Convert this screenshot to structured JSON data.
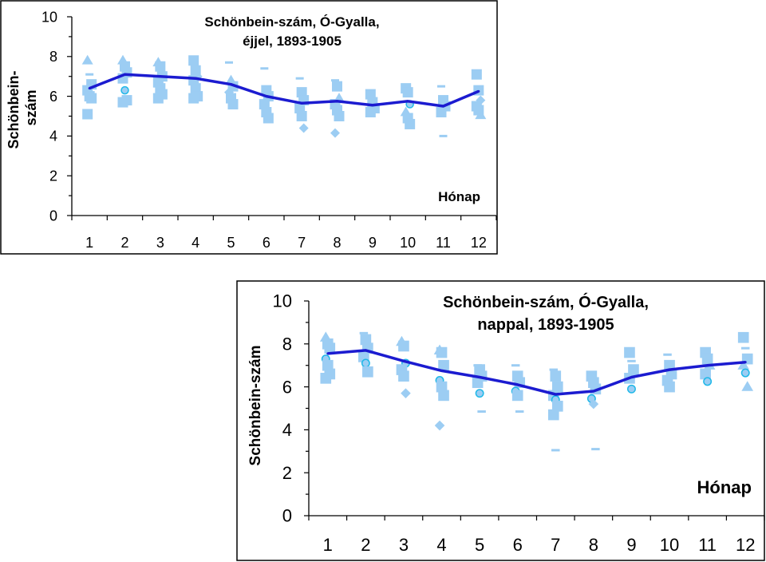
{
  "chart_data": [
    {
      "type": "line",
      "title_line1": "Schönbein-szám,  Ó-Gyalla,",
      "title_line2": "éjjel, 1893-1905",
      "ylabel_line1": "Schönbein-",
      "ylabel_line2": "szám",
      "xlabel": "Hónap",
      "ylim": [
        0,
        10
      ],
      "yticks": [
        "0",
        "2",
        "4",
        "6",
        "8",
        "10"
      ],
      "categories": [
        "1",
        "2",
        "3",
        "4",
        "5",
        "6",
        "7",
        "8",
        "9",
        "10",
        "11",
        "12"
      ],
      "series": [
        {
          "name": "mean",
          "values": [
            6.4,
            7.1,
            7.0,
            6.9,
            6.6,
            6.0,
            5.65,
            5.75,
            5.55,
            5.75,
            5.5,
            6.25
          ]
        }
      ],
      "scatter": [
        [
          [
            7.8,
            "tri"
          ],
          [
            7.1,
            "dash"
          ],
          [
            6.6,
            "sq"
          ],
          [
            6.3,
            "sq"
          ],
          [
            6.0,
            "sq"
          ],
          [
            5.9,
            "sq"
          ],
          [
            5.1,
            "sq"
          ]
        ],
        [
          [
            7.8,
            "tri"
          ],
          [
            7.5,
            "sq"
          ],
          [
            7.2,
            "sq"
          ],
          [
            6.9,
            "sq"
          ],
          [
            6.3,
            "circ"
          ],
          [
            5.8,
            "sq"
          ],
          [
            5.7,
            "sq"
          ]
        ],
        [
          [
            7.7,
            "tri"
          ],
          [
            7.5,
            "sq"
          ],
          [
            7.0,
            "sq"
          ],
          [
            6.7,
            "sq"
          ],
          [
            6.4,
            "sq"
          ],
          [
            6.1,
            "sq"
          ],
          [
            5.9,
            "sq"
          ]
        ],
        [
          [
            7.8,
            "sq"
          ],
          [
            7.3,
            "sq"
          ],
          [
            7.0,
            "diam"
          ],
          [
            6.8,
            "sq"
          ],
          [
            6.4,
            "sq"
          ],
          [
            6.0,
            "sq"
          ],
          [
            5.9,
            "sq"
          ]
        ],
        [
          [
            7.7,
            "dash"
          ],
          [
            6.8,
            "tri"
          ],
          [
            6.5,
            "sq"
          ],
          [
            6.2,
            "diam"
          ],
          [
            5.9,
            "sq"
          ],
          [
            5.6,
            "sq"
          ]
        ],
        [
          [
            7.4,
            "dash"
          ],
          [
            6.3,
            "sq"
          ],
          [
            6.0,
            "sq"
          ],
          [
            5.6,
            "sq"
          ],
          [
            5.2,
            "sq"
          ],
          [
            4.9,
            "sq"
          ]
        ],
        [
          [
            6.9,
            "dash"
          ],
          [
            6.2,
            "sq"
          ],
          [
            5.8,
            "sq"
          ],
          [
            5.4,
            "sq"
          ],
          [
            5.0,
            "sq"
          ],
          [
            4.4,
            "diam"
          ]
        ],
        [
          [
            6.8,
            "dash"
          ],
          [
            6.5,
            "sq"
          ],
          [
            5.9,
            "tri"
          ],
          [
            5.6,
            "sq"
          ],
          [
            5.3,
            "sq"
          ],
          [
            5.0,
            "sq"
          ],
          [
            4.15,
            "diam"
          ]
        ],
        [
          [
            6.1,
            "sq"
          ],
          [
            5.7,
            "sq"
          ],
          [
            5.4,
            "sq"
          ],
          [
            5.2,
            "sq"
          ]
        ],
        [
          [
            6.4,
            "sq"
          ],
          [
            6.2,
            "sq"
          ],
          [
            5.6,
            "circ"
          ],
          [
            5.2,
            "tri"
          ],
          [
            4.9,
            "sq"
          ],
          [
            4.6,
            "sq"
          ]
        ],
        [
          [
            6.5,
            "dash"
          ],
          [
            5.8,
            "sq"
          ],
          [
            5.5,
            "sq"
          ],
          [
            5.2,
            "sq"
          ],
          [
            4.0,
            "dash"
          ]
        ],
        [
          [
            7.1,
            "sq"
          ],
          [
            6.3,
            "sq"
          ],
          [
            5.8,
            "diam"
          ],
          [
            5.5,
            "sq"
          ],
          [
            5.3,
            "sq"
          ],
          [
            5.05,
            "tri"
          ]
        ]
      ]
    },
    {
      "type": "line",
      "title_line1": "Schönbein-szám, Ó-Gyalla,",
      "title_line2": "nappal, 1893-1905",
      "ylabel": "Schönbein-szám",
      "xlabel": "Hónap",
      "ylim": [
        0,
        10
      ],
      "yticks": [
        "0",
        "2",
        "4",
        "6",
        "8",
        "10"
      ],
      "categories": [
        "1",
        "2",
        "3",
        "4",
        "5",
        "6",
        "7",
        "8",
        "9",
        "10",
        "11",
        "12"
      ],
      "series": [
        {
          "name": "mean",
          "values": [
            7.55,
            7.7,
            7.2,
            6.75,
            6.45,
            6.1,
            5.65,
            5.8,
            6.45,
            6.8,
            7.0,
            7.15
          ]
        }
      ],
      "scatter": [
        [
          [
            8.3,
            "tri"
          ],
          [
            8.0,
            "sq"
          ],
          [
            7.8,
            "sq"
          ],
          [
            7.3,
            "circ"
          ],
          [
            7.0,
            "sq"
          ],
          [
            6.6,
            "sq"
          ],
          [
            6.4,
            "sq"
          ]
        ],
        [
          [
            8.5,
            "dash"
          ],
          [
            8.2,
            "sq"
          ],
          [
            7.8,
            "sq"
          ],
          [
            7.4,
            "sq"
          ],
          [
            7.1,
            "circ"
          ],
          [
            6.7,
            "sq"
          ]
        ],
        [
          [
            8.1,
            "tri"
          ],
          [
            7.9,
            "sq"
          ],
          [
            7.1,
            "circ"
          ],
          [
            6.8,
            "sq"
          ],
          [
            6.5,
            "sq"
          ],
          [
            5.7,
            "diam"
          ]
        ],
        [
          [
            7.7,
            "tri"
          ],
          [
            7.6,
            "sq"
          ],
          [
            7.0,
            "sq"
          ],
          [
            6.3,
            "circ"
          ],
          [
            6.0,
            "sq"
          ],
          [
            5.6,
            "sq"
          ],
          [
            4.2,
            "diam"
          ]
        ],
        [
          [
            7.0,
            "dash"
          ],
          [
            6.8,
            "sq"
          ],
          [
            6.5,
            "sq"
          ],
          [
            6.2,
            "sq"
          ],
          [
            5.7,
            "circ"
          ],
          [
            4.85,
            "dash"
          ]
        ],
        [
          [
            7.0,
            "dash"
          ],
          [
            6.5,
            "sq"
          ],
          [
            6.2,
            "sq"
          ],
          [
            5.8,
            "circ"
          ],
          [
            5.6,
            "sq"
          ],
          [
            4.85,
            "dash"
          ]
        ],
        [
          [
            6.8,
            "dash"
          ],
          [
            6.5,
            "sq"
          ],
          [
            6.0,
            "sq"
          ],
          [
            5.6,
            "sq"
          ],
          [
            5.4,
            "circ"
          ],
          [
            5.1,
            "sq"
          ],
          [
            4.7,
            "sq"
          ],
          [
            3.05,
            "dash"
          ]
        ],
        [
          [
            6.5,
            "sq"
          ],
          [
            6.2,
            "sq"
          ],
          [
            5.9,
            "sq"
          ],
          [
            5.45,
            "circ"
          ],
          [
            5.2,
            "diam"
          ],
          [
            3.1,
            "dash"
          ]
        ],
        [
          [
            7.6,
            "sq"
          ],
          [
            7.2,
            "dash"
          ],
          [
            6.8,
            "sq"
          ],
          [
            6.4,
            "sq"
          ],
          [
            5.9,
            "circ"
          ]
        ],
        [
          [
            7.5,
            "dash"
          ],
          [
            7.0,
            "sq"
          ],
          [
            6.6,
            "sq"
          ],
          [
            6.3,
            "sq"
          ],
          [
            6.0,
            "sq"
          ]
        ],
        [
          [
            7.6,
            "sq"
          ],
          [
            7.3,
            "sq"
          ],
          [
            7.0,
            "tri"
          ],
          [
            6.6,
            "sq"
          ],
          [
            6.25,
            "circ"
          ]
        ],
        [
          [
            8.3,
            "sq"
          ],
          [
            7.8,
            "dash"
          ],
          [
            7.3,
            "sq"
          ],
          [
            7.0,
            "tri"
          ],
          [
            6.65,
            "circ"
          ],
          [
            6.0,
            "tri"
          ]
        ]
      ]
    }
  ],
  "colors": {
    "line": "#1b1bd0",
    "marker": "#9ccdf3",
    "circle_stroke": "#1fb8e8",
    "frame": "#000000"
  }
}
